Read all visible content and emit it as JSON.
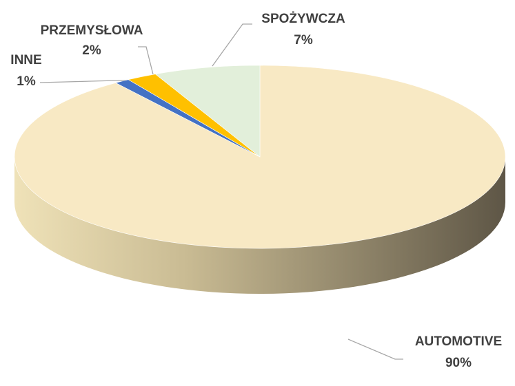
{
  "chart_data": {
    "type": "pie",
    "categories": [
      "AUTOMOTIVE",
      "INNE",
      "PRZEMYSŁOWA",
      "SPOŻYWCZA"
    ],
    "values": [
      90,
      1,
      2,
      7
    ],
    "value_labels": [
      "90%",
      "1%",
      "2%",
      "7%"
    ],
    "colors": [
      "#f8e9c4",
      "#4472c4",
      "#ffc000",
      "#e2efda"
    ]
  }
}
